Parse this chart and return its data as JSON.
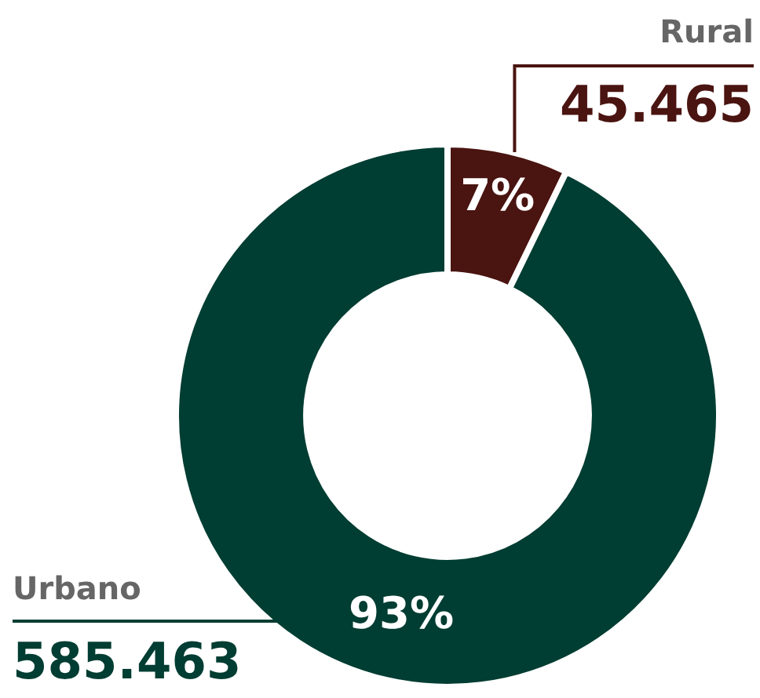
{
  "chart_data": {
    "type": "donut",
    "categories": [
      "Rural",
      "Urbano"
    ],
    "values": [
      45465,
      585463
    ],
    "value_labels": [
      "45.465",
      "585.463"
    ],
    "colors": [
      "#4a1410",
      "#003d32"
    ],
    "annotations": [
      {
        "text": "7%",
        "x": "Rural"
      },
      {
        "text": "93%",
        "x": "Urbano"
      }
    ],
    "legend": false
  }
}
